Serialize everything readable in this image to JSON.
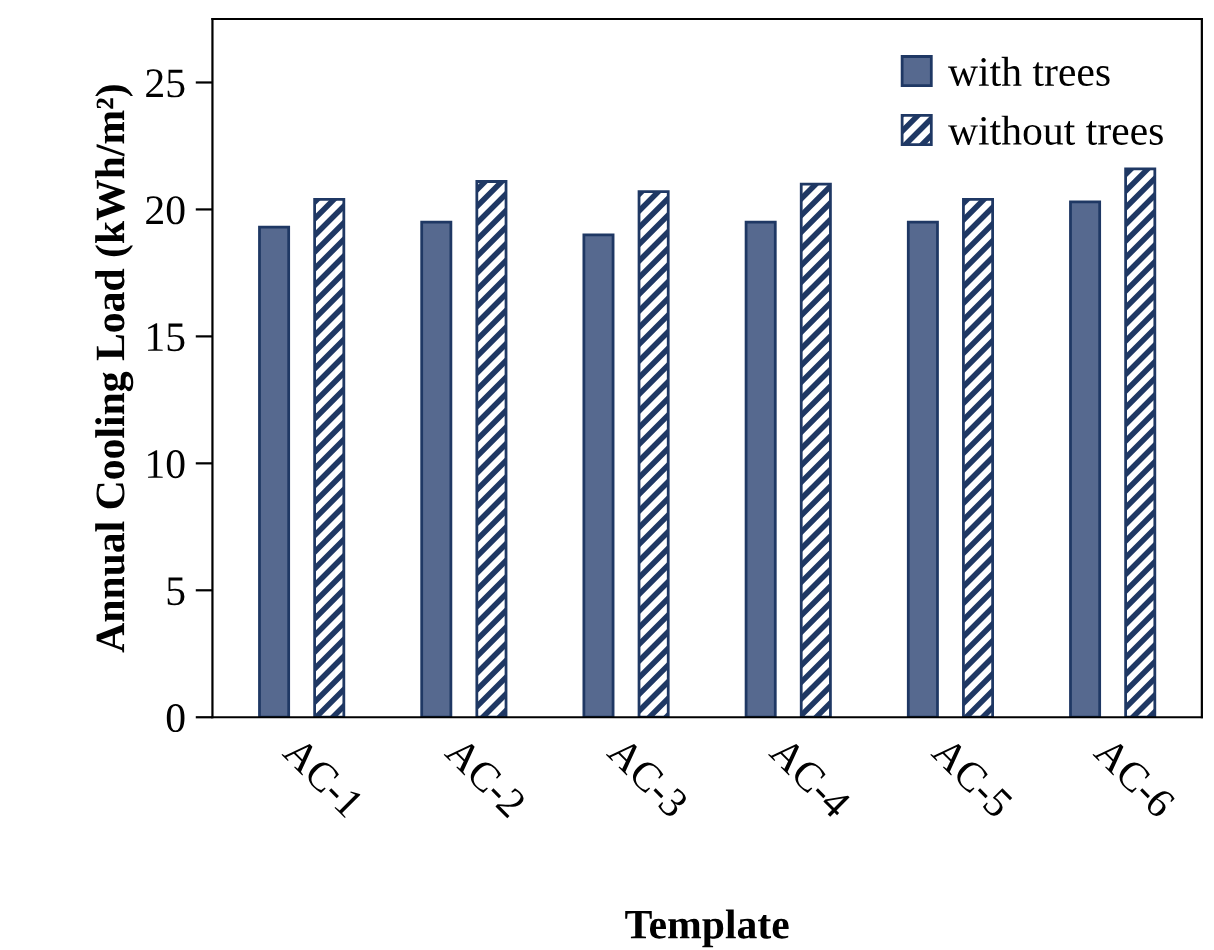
{
  "chart_data": {
    "type": "bar",
    "xlabel": "Template",
    "ylabel": "Annual Cooling Load (kWh/m²)",
    "categories": [
      "AC-1",
      "AC-2",
      "AC-3",
      "AC-4",
      "AC-5",
      "AC-6"
    ],
    "series": [
      {
        "name": "with trees",
        "color": "#56698f",
        "values": [
          19.3,
          19.5,
          19.0,
          19.5,
          19.5,
          20.3
        ]
      },
      {
        "name": "without trees",
        "color": "#1f3864",
        "values": [
          20.4,
          21.1,
          20.7,
          21.0,
          20.4,
          21.6
        ]
      }
    ],
    "ylim": [
      0,
      27.5
    ],
    "yticks": [
      0,
      5,
      10,
      15,
      20,
      25
    ],
    "grid": false,
    "legend": "top right"
  }
}
